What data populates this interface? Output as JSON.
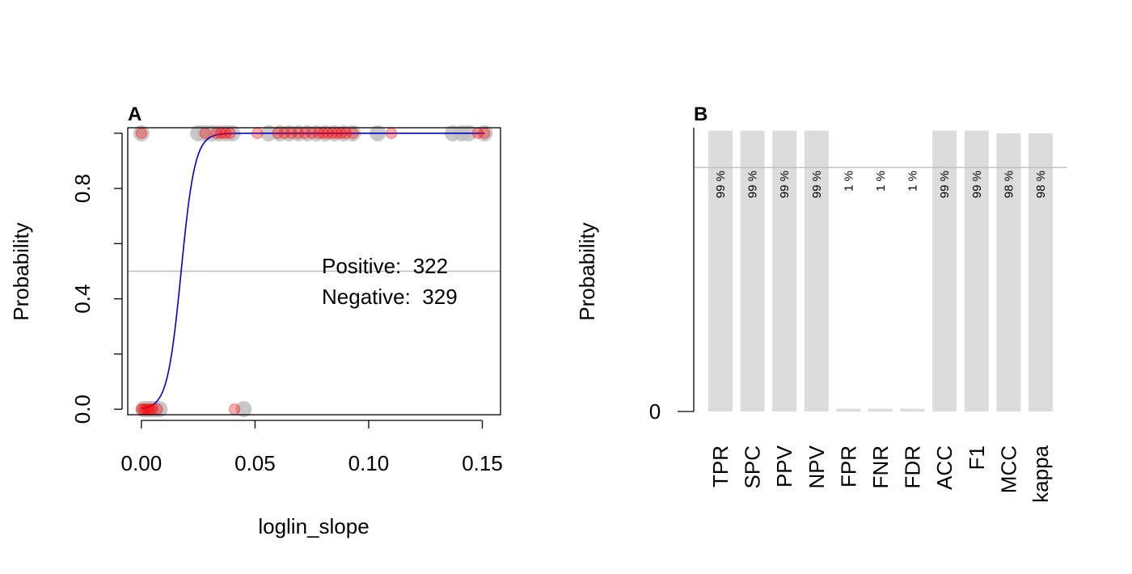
{
  "chart_data": [
    {
      "panel_label": "A",
      "type": "scatter",
      "xlabel": "loglin_slope",
      "ylabel": "Probability",
      "xlim": [
        -0.006,
        0.158
      ],
      "ylim": [
        -0.02,
        1.02
      ],
      "x_ticks": [
        0.0,
        0.05,
        0.1,
        0.15
      ],
      "x_tick_labels": [
        "0.00",
        "0.05",
        "0.10",
        "0.15"
      ],
      "y_ticks": [
        0.0,
        0.2,
        0.4,
        0.6,
        0.8,
        1.0
      ],
      "y_tick_labels": [
        "0.0",
        "",
        "0.4",
        "",
        "0.8",
        ""
      ],
      "threshold": 0.5,
      "annotations": [
        "Positive:  322",
        "Negative:  329"
      ],
      "observed_color": "#bebebe",
      "predicted_color": "#ff0000",
      "curve_color": "#0000cc",
      "logistic_fit": {
        "x0": 0.0175,
        "k": 330
      },
      "points_observed": [
        {
          "x": 0.0,
          "y": 1
        },
        {
          "x": 0.001,
          "y": 0
        },
        {
          "x": 0.002,
          "y": 0
        },
        {
          "x": 0.003,
          "y": 0
        },
        {
          "x": 0.004,
          "y": 0
        },
        {
          "x": 0.005,
          "y": 0
        },
        {
          "x": 0.006,
          "y": 0
        },
        {
          "x": 0.008,
          "y": 0
        },
        {
          "x": 0.025,
          "y": 1
        },
        {
          "x": 0.028,
          "y": 1
        },
        {
          "x": 0.031,
          "y": 1
        },
        {
          "x": 0.034,
          "y": 1
        },
        {
          "x": 0.037,
          "y": 1
        },
        {
          "x": 0.04,
          "y": 1
        },
        {
          "x": 0.045,
          "y": 0
        },
        {
          "x": 0.056,
          "y": 1
        },
        {
          "x": 0.061,
          "y": 1
        },
        {
          "x": 0.065,
          "y": 1
        },
        {
          "x": 0.069,
          "y": 1
        },
        {
          "x": 0.073,
          "y": 1
        },
        {
          "x": 0.077,
          "y": 1
        },
        {
          "x": 0.081,
          "y": 1
        },
        {
          "x": 0.085,
          "y": 1
        },
        {
          "x": 0.089,
          "y": 1
        },
        {
          "x": 0.093,
          "y": 1
        },
        {
          "x": 0.104,
          "y": 1
        },
        {
          "x": 0.137,
          "y": 1
        },
        {
          "x": 0.141,
          "y": 1
        },
        {
          "x": 0.144,
          "y": 1
        },
        {
          "x": 0.151,
          "y": 1
        }
      ],
      "points_predicted": [
        {
          "x": 0.0,
          "y": 1
        },
        {
          "x": 0.0,
          "y": 0
        },
        {
          "x": 0.001,
          "y": 0
        },
        {
          "x": 0.002,
          "y": 0
        },
        {
          "x": 0.003,
          "y": 0
        },
        {
          "x": 0.004,
          "y": 0
        },
        {
          "x": 0.005,
          "y": 0
        },
        {
          "x": 0.007,
          "y": 0
        },
        {
          "x": 0.028,
          "y": 1
        },
        {
          "x": 0.033,
          "y": 1
        },
        {
          "x": 0.035,
          "y": 1
        },
        {
          "x": 0.037,
          "y": 1
        },
        {
          "x": 0.039,
          "y": 1
        },
        {
          "x": 0.041,
          "y": 0
        },
        {
          "x": 0.051,
          "y": 1
        },
        {
          "x": 0.06,
          "y": 1
        },
        {
          "x": 0.063,
          "y": 1
        },
        {
          "x": 0.066,
          "y": 1
        },
        {
          "x": 0.069,
          "y": 1
        },
        {
          "x": 0.072,
          "y": 1
        },
        {
          "x": 0.075,
          "y": 1
        },
        {
          "x": 0.078,
          "y": 1
        },
        {
          "x": 0.08,
          "y": 1
        },
        {
          "x": 0.082,
          "y": 1
        },
        {
          "x": 0.084,
          "y": 1
        },
        {
          "x": 0.086,
          "y": 1
        },
        {
          "x": 0.088,
          "y": 1
        },
        {
          "x": 0.09,
          "y": 1
        },
        {
          "x": 0.093,
          "y": 1
        },
        {
          "x": 0.11,
          "y": 1
        },
        {
          "x": 0.148,
          "y": 1
        },
        {
          "x": 0.151,
          "y": 1
        }
      ]
    },
    {
      "panel_label": "B",
      "type": "bar",
      "ylabel": "Probability",
      "y_ticks": [
        0
      ],
      "y_tick_labels": [
        "0"
      ],
      "threshold": 0.86,
      "bar_color": "#dcdcdc",
      "categories": [
        "TPR",
        "SPC",
        "PPV",
        "NPV",
        "FPR",
        "FNR",
        "FDR",
        "ACC",
        "F1",
        "MCC",
        "kappa"
      ],
      "values": [
        0.99,
        0.99,
        0.99,
        0.99,
        0.01,
        0.01,
        0.01,
        0.99,
        0.99,
        0.98,
        0.98
      ],
      "bar_labels": [
        "99 %",
        "99 %",
        "99 %",
        "99 %",
        "1 %",
        "1 %",
        "1 %",
        "99 %",
        "99 %",
        "98 %",
        "98 %"
      ]
    }
  ]
}
